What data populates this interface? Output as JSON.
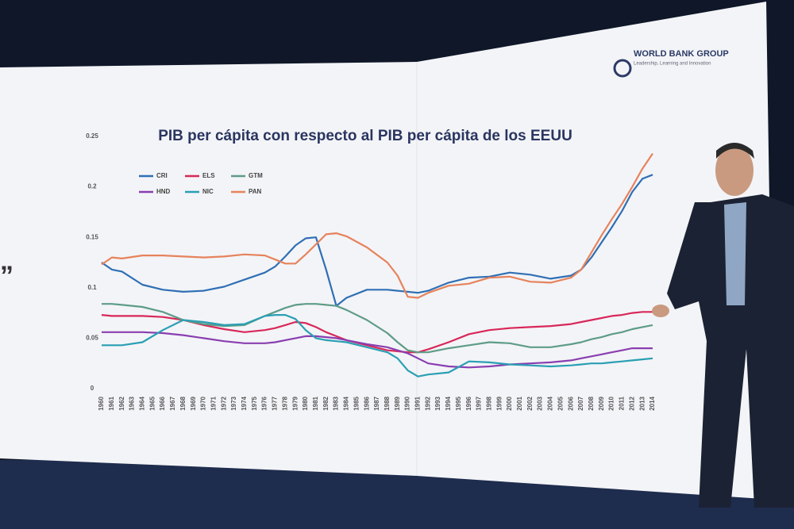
{
  "chart_data": {
    "type": "line",
    "title": "PIB per cápita con respecto al PIB per cápita de los EEUU",
    "x": [
      1960,
      1961,
      1962,
      1964,
      1966,
      1968,
      1970,
      1972,
      1974,
      1976,
      1977,
      1978,
      1979,
      1980,
      1981,
      1982,
      1983,
      1984,
      1986,
      1988,
      1989,
      1990,
      1991,
      1992,
      1994,
      1996,
      1998,
      2000,
      2002,
      2004,
      2006,
      2007,
      2008,
      2009,
      2010,
      2011,
      2012,
      2013,
      2014
    ],
    "xlim": [
      1960,
      2014
    ],
    "xticks": [
      1960,
      1961,
      1962,
      1963,
      1964,
      1965,
      1966,
      1967,
      1968,
      1969,
      1970,
      1971,
      1972,
      1973,
      1974,
      1975,
      1976,
      1977,
      1978,
      1979,
      1980,
      1981,
      1982,
      1983,
      1984,
      1985,
      1986,
      1987,
      1988,
      1989,
      1990,
      1991,
      1992,
      1993,
      1994,
      1995,
      1996,
      1997,
      1998,
      1999,
      2000,
      2001,
      2002,
      2003,
      2004,
      2005,
      2006,
      2007,
      2008,
      2009,
      2010,
      2011,
      2012,
      2013,
      2014
    ],
    "ylim": [
      0,
      0.25
    ],
    "yticks": [
      0,
      0.05,
      0.1,
      0.15,
      0.2,
      0.25
    ],
    "grid": false,
    "legend": "top-left",
    "series": [
      {
        "name": "CRI",
        "color": "#2f6fb5",
        "values": [
          0.125,
          0.118,
          0.116,
          0.103,
          0.098,
          0.096,
          0.097,
          0.101,
          0.108,
          0.115,
          0.121,
          0.131,
          0.142,
          0.149,
          0.15,
          0.118,
          0.082,
          0.09,
          0.098,
          0.098,
          0.097,
          0.096,
          0.095,
          0.097,
          0.105,
          0.11,
          0.111,
          0.115,
          0.113,
          0.109,
          0.112,
          0.118,
          0.13,
          0.145,
          0.16,
          0.176,
          0.195,
          0.208,
          0.212
        ]
      },
      {
        "name": "ELS",
        "color": "#d8285a",
        "values": [
          0.073,
          0.072,
          0.072,
          0.072,
          0.071,
          0.068,
          0.063,
          0.059,
          0.056,
          0.058,
          0.06,
          0.063,
          0.066,
          0.065,
          0.061,
          0.056,
          0.052,
          0.048,
          0.043,
          0.038,
          0.037,
          0.036,
          0.036,
          0.039,
          0.046,
          0.054,
          0.058,
          0.06,
          0.061,
          0.062,
          0.064,
          0.066,
          0.068,
          0.07,
          0.072,
          0.073,
          0.075,
          0.076,
          0.076
        ]
      },
      {
        "name": "GTM",
        "color": "#5e9c87",
        "values": [
          0.084,
          0.084,
          0.083,
          0.081,
          0.076,
          0.068,
          0.064,
          0.062,
          0.063,
          0.072,
          0.076,
          0.08,
          0.083,
          0.084,
          0.084,
          0.083,
          0.082,
          0.078,
          0.068,
          0.055,
          0.046,
          0.038,
          0.036,
          0.036,
          0.04,
          0.043,
          0.046,
          0.045,
          0.041,
          0.041,
          0.044,
          0.046,
          0.049,
          0.051,
          0.054,
          0.056,
          0.059,
          0.061,
          0.063
        ]
      },
      {
        "name": "HND",
        "color": "#8a3fb0",
        "values": [
          0.056,
          0.056,
          0.056,
          0.056,
          0.055,
          0.053,
          0.05,
          0.047,
          0.045,
          0.045,
          0.046,
          0.048,
          0.05,
          0.052,
          0.052,
          0.051,
          0.05,
          0.048,
          0.044,
          0.041,
          0.038,
          0.035,
          0.03,
          0.025,
          0.022,
          0.021,
          0.022,
          0.024,
          0.025,
          0.026,
          0.028,
          0.03,
          0.032,
          0.034,
          0.036,
          0.038,
          0.04,
          0.04,
          0.04
        ]
      },
      {
        "name": "NIC",
        "color": "#2a9fb4",
        "values": [
          0.043,
          0.043,
          0.043,
          0.046,
          0.058,
          0.068,
          0.066,
          0.063,
          0.064,
          0.072,
          0.073,
          0.073,
          0.069,
          0.058,
          0.05,
          0.048,
          0.047,
          0.046,
          0.041,
          0.036,
          0.03,
          0.018,
          0.012,
          0.014,
          0.016,
          0.027,
          0.026,
          0.024,
          0.023,
          0.022,
          0.023,
          0.024,
          0.025,
          0.025,
          0.026,
          0.027,
          0.028,
          0.029,
          0.03
        ]
      },
      {
        "name": "PAN",
        "color": "#e6835c",
        "values": [
          0.123,
          0.13,
          0.129,
          0.132,
          0.132,
          0.131,
          0.13,
          0.131,
          0.133,
          0.132,
          0.128,
          0.124,
          0.124,
          0.133,
          0.143,
          0.153,
          0.154,
          0.151,
          0.14,
          0.125,
          0.112,
          0.091,
          0.09,
          0.095,
          0.102,
          0.104,
          0.11,
          0.111,
          0.106,
          0.105,
          0.11,
          0.118,
          0.135,
          0.152,
          0.168,
          0.183,
          0.2,
          0.218,
          0.233
        ]
      }
    ]
  },
  "logo": {
    "name": "WORLD BANK GROUP",
    "tagline": "Leadership, Learning and Innovation"
  },
  "side_text": "”"
}
